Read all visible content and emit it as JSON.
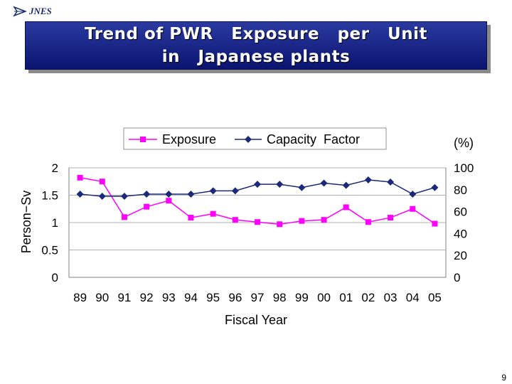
{
  "header": {
    "logo_text": "JNES",
    "logo_icon": "jnes-logo-icon"
  },
  "title": {
    "line1": "Trend of PWR   Exposure   per   Unit",
    "line2": "in   Japanese plants"
  },
  "page_number": "9",
  "colors": {
    "exposure": "#ff00ff",
    "capacity": "#1a2a78",
    "grid": "#b0b0b0",
    "plot_bg": "#ffffff"
  },
  "chart_data": {
    "type": "line",
    "xlabel": "Fiscal Year",
    "ylabel_left": "Person−Sv",
    "ylabel_right": "(%)",
    "categories": [
      "89",
      "90",
      "91",
      "92",
      "93",
      "94",
      "95",
      "96",
      "97",
      "98",
      "99",
      "00",
      "01",
      "02",
      "03",
      "04",
      "05"
    ],
    "ylim_left": [
      0,
      2
    ],
    "yticks_left": [
      0,
      0.5,
      1,
      1.5,
      2
    ],
    "yticks_left_labels": [
      "0",
      "0.5",
      "1",
      "1.5",
      "2"
    ],
    "ylim_right": [
      0,
      100
    ],
    "yticks_right": [
      0,
      20,
      40,
      60,
      80,
      100
    ],
    "yticks_right_labels": [
      "0",
      "20",
      "40",
      "60",
      "80",
      "100"
    ],
    "grid": "horizontal",
    "legend": "top",
    "series": [
      {
        "name": "Exposure",
        "axis": "left",
        "marker": "square",
        "values": [
          1.82,
          1.75,
          1.1,
          1.29,
          1.4,
          1.09,
          1.16,
          1.05,
          1.01,
          0.97,
          1.03,
          1.05,
          1.28,
          1.01,
          1.09,
          1.25,
          0.98
        ]
      },
      {
        "name": "Capacity  Factor",
        "axis": "right",
        "marker": "diamond",
        "values": [
          76,
          74,
          74,
          76,
          76,
          76,
          79,
          79,
          85,
          85,
          82,
          86,
          84,
          89,
          87,
          76,
          82
        ]
      }
    ]
  }
}
